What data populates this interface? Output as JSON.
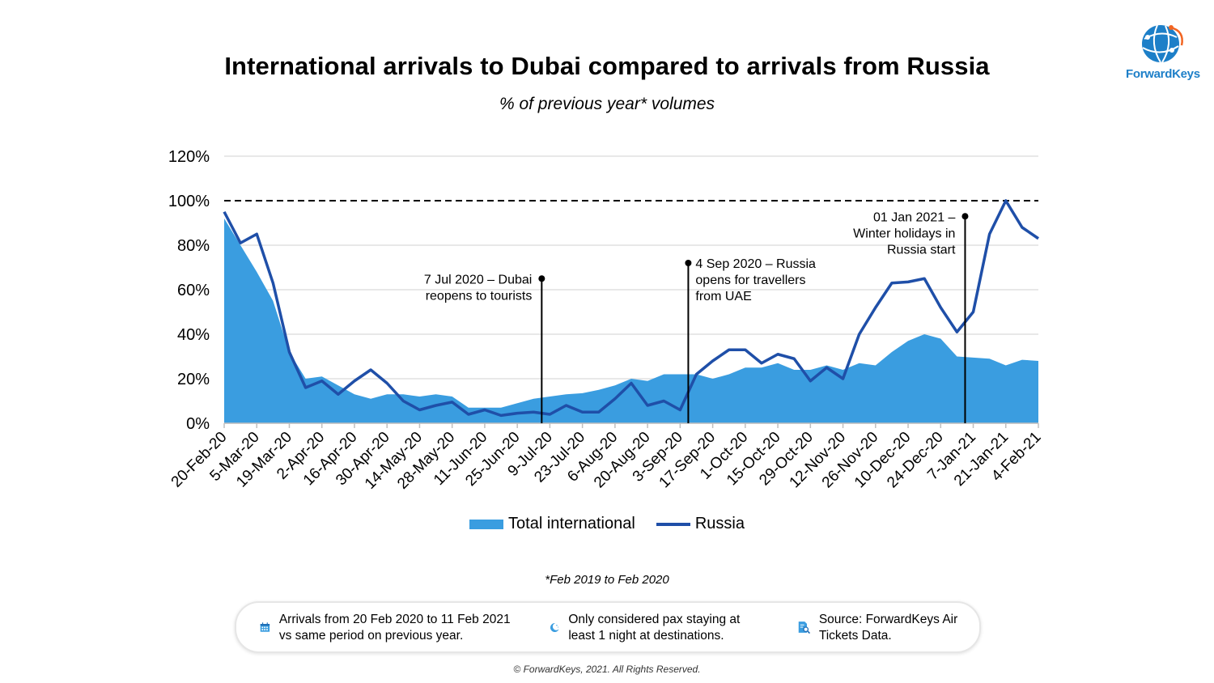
{
  "title": "International arrivals to Dubai compared to arrivals from Russia",
  "subtitle": "% of previous year* volumes",
  "logo_text": "ForwardKeys",
  "footnote": "*Feb 2019 to Feb 2020",
  "copyright": "© ForwardKeys, 2021. All Rights Reserved.",
  "info": [
    {
      "icon": "calendar-icon",
      "text": "Arrivals from 20 Feb 2020 to 11 Feb 2021 vs same period on previous year."
    },
    {
      "icon": "moon-night-icon",
      "text": "Only considered pax staying at least 1 night at destinations."
    },
    {
      "icon": "document-search-icon",
      "text": "Source: ForwardKeys Air Tickets Data."
    }
  ],
  "legend": [
    {
      "label": "Total international",
      "color": "#3a9de0",
      "kind": "area"
    },
    {
      "label": "Russia",
      "color": "#1f4fa8",
      "kind": "line"
    }
  ],
  "chart_data": {
    "type": "area",
    "ylim": [
      0,
      120
    ],
    "yticks": [
      "0%",
      "20%",
      "40%",
      "60%",
      "80%",
      "100%",
      "120%"
    ],
    "reference_line": 100,
    "x_tick_labels": [
      "20-Feb-20",
      "5-Mar-20",
      "19-Mar-20",
      "2-Apr-20",
      "16-Apr-20",
      "30-Apr-20",
      "14-May-20",
      "28-May-20",
      "11-Jun-20",
      "25-Jun-20",
      "9-Jul-20",
      "23-Jul-20",
      "6-Aug-20",
      "20-Aug-20",
      "3-Sep-20",
      "17-Sep-20",
      "1-Oct-20",
      "15-Oct-20",
      "29-Oct-20",
      "12-Nov-20",
      "26-Nov-20",
      "10-Dec-20",
      "24-Dec-20",
      "7-Jan-21",
      "21-Jan-21",
      "4-Feb-21"
    ],
    "series": [
      {
        "name": "Total international",
        "kind": "area",
        "values": [
          92,
          80,
          68,
          55,
          32,
          20,
          21,
          17,
          13,
          11,
          13,
          13,
          12,
          13,
          12,
          7,
          7,
          7,
          9,
          11,
          12,
          13,
          13.5,
          15,
          17,
          20,
          19,
          22,
          22,
          22,
          20,
          22,
          25,
          25,
          27,
          24,
          24,
          26,
          24,
          27,
          26,
          32,
          37,
          40,
          38,
          30,
          29.5,
          29,
          26,
          28.5,
          28
        ]
      },
      {
        "name": "Russia",
        "kind": "line",
        "values": [
          95,
          81,
          85,
          63,
          32,
          16,
          19,
          13,
          19,
          24,
          18,
          10,
          6,
          8,
          9.5,
          4,
          6,
          3.5,
          4.5,
          5,
          4,
          8,
          5,
          5,
          11,
          18,
          8,
          10,
          6,
          22,
          28,
          33,
          33,
          27,
          31,
          29,
          19,
          25,
          20,
          40,
          52,
          63,
          63.5,
          65,
          52,
          41,
          50,
          85,
          100,
          88,
          83
        ]
      }
    ],
    "annotations": [
      {
        "index": 19.5,
        "value": 65,
        "text": [
          "7 Jul 2020 – Dubai",
          "reopens to tourists"
        ],
        "side": "left"
      },
      {
        "index": 28.5,
        "value": 72,
        "text": [
          "4 Sep 2020 – Russia",
          "opens for travellers",
          "from UAE"
        ],
        "side": "right"
      },
      {
        "index": 45.5,
        "value": 93,
        "text": [
          "01 Jan 2021 –",
          "Winter holidays in",
          "Russia start"
        ],
        "side": "left"
      }
    ]
  }
}
